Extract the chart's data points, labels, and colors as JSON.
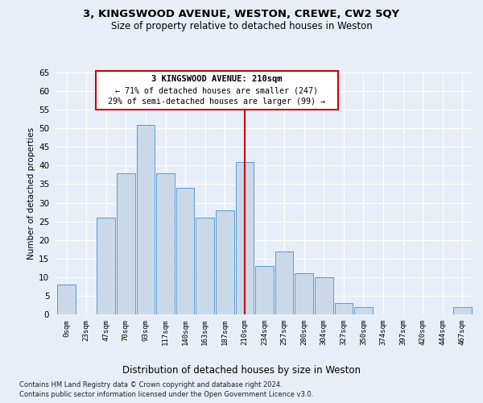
{
  "title_line1": "3, KINGSWOOD AVENUE, WESTON, CREWE, CW2 5QY",
  "title_line2": "Size of property relative to detached houses in Weston",
  "xlabel": "Distribution of detached houses by size in Weston",
  "ylabel": "Number of detached properties",
  "categories": [
    "0sqm",
    "23sqm",
    "47sqm",
    "70sqm",
    "93sqm",
    "117sqm",
    "140sqm",
    "163sqm",
    "187sqm",
    "210sqm",
    "234sqm",
    "257sqm",
    "280sqm",
    "304sqm",
    "327sqm",
    "350sqm",
    "374sqm",
    "397sqm",
    "420sqm",
    "444sqm",
    "467sqm"
  ],
  "values": [
    8,
    0,
    26,
    38,
    51,
    38,
    34,
    26,
    28,
    41,
    13,
    17,
    11,
    10,
    3,
    2,
    0,
    0,
    0,
    0,
    2
  ],
  "bar_color": "#c9d9ea",
  "bar_edge_color": "#5b9bd5",
  "marker_index": 9,
  "marker_color": "#cc0000",
  "annotation_title": "3 KINGSWOOD AVENUE: 210sqm",
  "annotation_line1": "← 71% of detached houses are smaller (247)",
  "annotation_line2": "29% of semi-detached houses are larger (99) →",
  "annotation_box_color": "#ffffff",
  "annotation_box_edge": "#cc0000",
  "ylim": [
    0,
    65
  ],
  "yticks": [
    0,
    5,
    10,
    15,
    20,
    25,
    30,
    35,
    40,
    45,
    50,
    55,
    60,
    65
  ],
  "background_color": "#e8eef7",
  "grid_color": "#ffffff",
  "footer_line1": "Contains HM Land Registry data © Crown copyright and database right 2024.",
  "footer_line2": "Contains public sector information licensed under the Open Government Licence v3.0."
}
